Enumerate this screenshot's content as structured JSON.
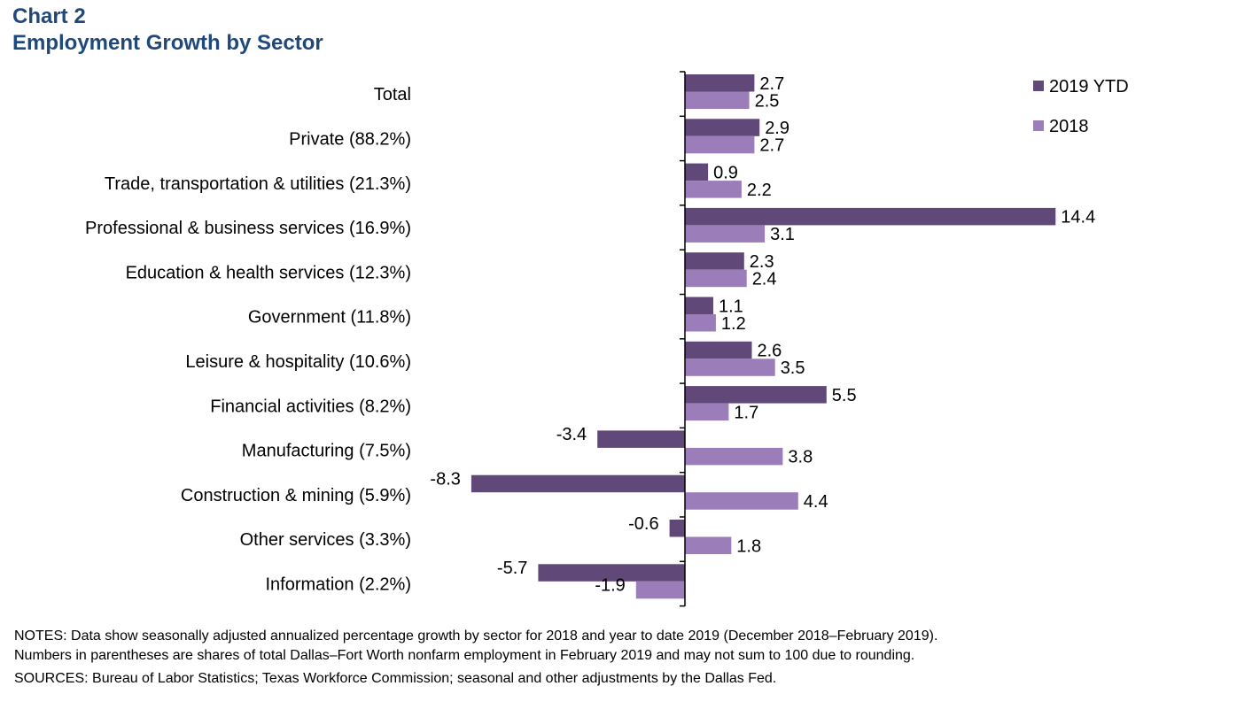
{
  "header": {
    "chart_label": "Chart 2",
    "chart_title": "Employment Growth by Sector"
  },
  "colors": {
    "series_2019": "#604878",
    "series_2018": "#9b7eb9",
    "title": "#1f497d",
    "axis": "#000000"
  },
  "chart_data": {
    "type": "bar",
    "orientation": "horizontal",
    "title": "Employment Growth by Sector",
    "xlabel": "",
    "ylabel": "",
    "xlim": [
      -9,
      15
    ],
    "grid": false,
    "legend_position": "top-right",
    "categories": [
      "Total",
      "Private (88.2%)",
      "Trade, transportation & utilities (21.3%)",
      "Professional & business services (16.9%)",
      "Education & health services (12.3%)",
      "Government (11.8%)",
      "Leisure & hospitality (10.6%)",
      "Financial activities (8.2%)",
      "Manufacturing (7.5%)",
      "Construction & mining (5.9%)",
      "Other services (3.3%)",
      "Information (2.2%)"
    ],
    "series": [
      {
        "name": "2019 YTD",
        "color": "#604878",
        "values": [
          2.7,
          2.9,
          0.9,
          14.4,
          2.3,
          1.1,
          2.6,
          5.5,
          -3.4,
          -8.3,
          -0.6,
          -5.7
        ],
        "labels": [
          "2.7",
          "2.9",
          "0.9",
          "14.4",
          "2.3",
          "1.1",
          "2.6",
          "5.5",
          "-3.4",
          "-8.3",
          "-0.6",
          "-5.7"
        ]
      },
      {
        "name": "2018",
        "color": "#9b7eb9",
        "values": [
          2.5,
          2.7,
          2.2,
          3.1,
          2.4,
          1.2,
          3.5,
          1.7,
          3.8,
          4.4,
          1.8,
          -1.9
        ],
        "labels": [
          "2.5",
          "2.7",
          "2.2",
          "3.1",
          "2.4",
          "1.2",
          "3.5",
          "1.7",
          "3.8",
          "4.4",
          "1.8",
          "-1.9"
        ]
      }
    ]
  },
  "notes": {
    "line1": "NOTES: Data show seasonally adjusted annualized  percentage growth by sector for 2018 and year to date 2019 (December 2018–February 2019).",
    "line2": "Numbers in parentheses are shares of total Dallas–Fort Worth nonfarm employment in February 2019 and may not sum to 100 due to rounding.",
    "sources": "SOURCES: Bureau of Labor Statistics; Texas Workforce Commission;  seasonal and other adjustments by the Dallas Fed."
  }
}
